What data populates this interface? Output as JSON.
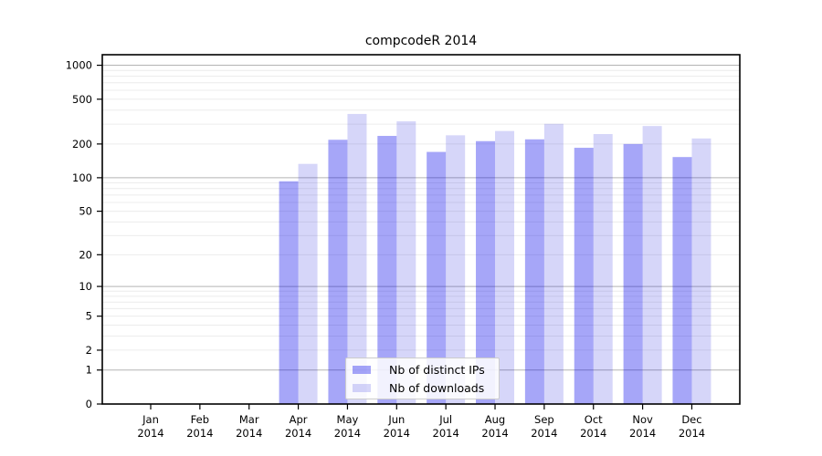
{
  "chart_data": {
    "type": "bar",
    "title": "compcodeR 2014",
    "categories": [
      "Jan",
      "Feb",
      "Mar",
      "Apr",
      "May",
      "Jun",
      "Jul",
      "Aug",
      "Sep",
      "Oct",
      "Nov",
      "Dec"
    ],
    "year_label": "2014",
    "series": [
      {
        "name": "Nb of distinct IPs",
        "color": "rgba(0,0,235,0.35)",
        "values": [
          0,
          0,
          0,
          93,
          218,
          236,
          170,
          212,
          220,
          185,
          200,
          153
        ]
      },
      {
        "name": "Nb of downloads",
        "color": "rgba(0,0,220,0.16)",
        "values": [
          0,
          0,
          0,
          133,
          370,
          318,
          239,
          261,
          302,
          245,
          289,
          224
        ]
      }
    ],
    "xlabel": "",
    "ylabel": "",
    "yticks": [
      0,
      1,
      2,
      5,
      10,
      20,
      50,
      100,
      200,
      500,
      1000
    ],
    "scale": "log1p",
    "ylim": [
      0,
      1240
    ],
    "grid": true,
    "legend_position": "bottom-center",
    "colors": {
      "decade_grid": "#b3b3b3",
      "minor_grid": "#ececec",
      "frame": "#000000",
      "tick_text": "#000000"
    }
  }
}
